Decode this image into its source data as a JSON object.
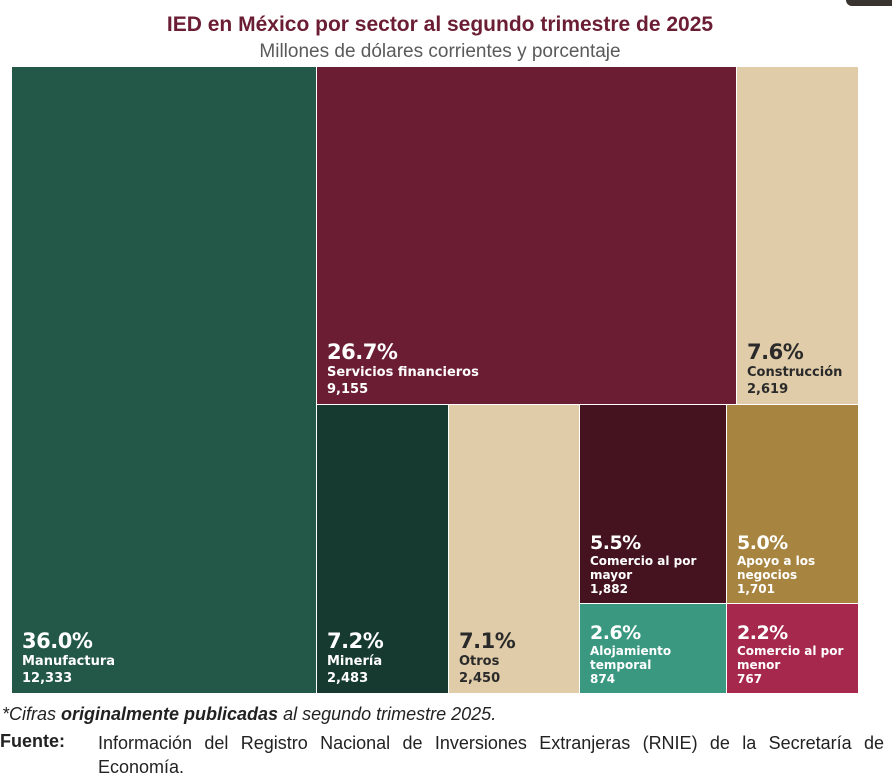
{
  "chart_data": {
    "type": "treemap",
    "title": "IED en México por sector al segundo trimestre de 2025",
    "subtitle": "Millones de dólares corrientes y porcentaje",
    "sectors": [
      {
        "name": "Manufactura",
        "value": 12333,
        "value_label": "12,333",
        "percent_label": "36.0%",
        "color": "#235747"
      },
      {
        "name": "Servicios financieros",
        "value": 9155,
        "value_label": "9,155",
        "percent_label": "26.7%",
        "color": "#6b1d34"
      },
      {
        "name": "Construcción",
        "value": 2619,
        "value_label": "2,619",
        "percent_label": "7.6%",
        "color": "#e0cca8"
      },
      {
        "name": "Minería",
        "value": 2483,
        "value_label": "2,483",
        "percent_label": "7.2%",
        "color": "#173a30"
      },
      {
        "name": "Otros",
        "value": 2450,
        "value_label": "2,450",
        "percent_label": "7.1%",
        "color": "#e0cca8"
      },
      {
        "name": "Comercio al por mayor",
        "value": 1882,
        "value_label": "1,882",
        "percent_label": "5.5%",
        "color": "#44131f"
      },
      {
        "name": "Apoyo a los negocios",
        "value": 1701,
        "value_label": "1,701",
        "percent_label": "5.0%",
        "color": "#a7843f"
      },
      {
        "name": "Alojamiento temporal",
        "value": 874,
        "value_label": "874",
        "percent_label": "2.6%",
        "color": "#3a9881"
      },
      {
        "name": "Comercio al por menor",
        "value": 767,
        "value_label": "767",
        "percent_label": "2.2%",
        "color": "#a6284d"
      }
    ]
  },
  "footer": {
    "note_prefix": "*Cifras ",
    "note_bold": "originalmente publicadas",
    "note_suffix": " al segundo trimestre 2025.",
    "source_label": "Fuente:",
    "source_text": "Información del Registro Nacional de Inversiones Extranjeras (RNIE) de la Secretaría de Economía."
  }
}
